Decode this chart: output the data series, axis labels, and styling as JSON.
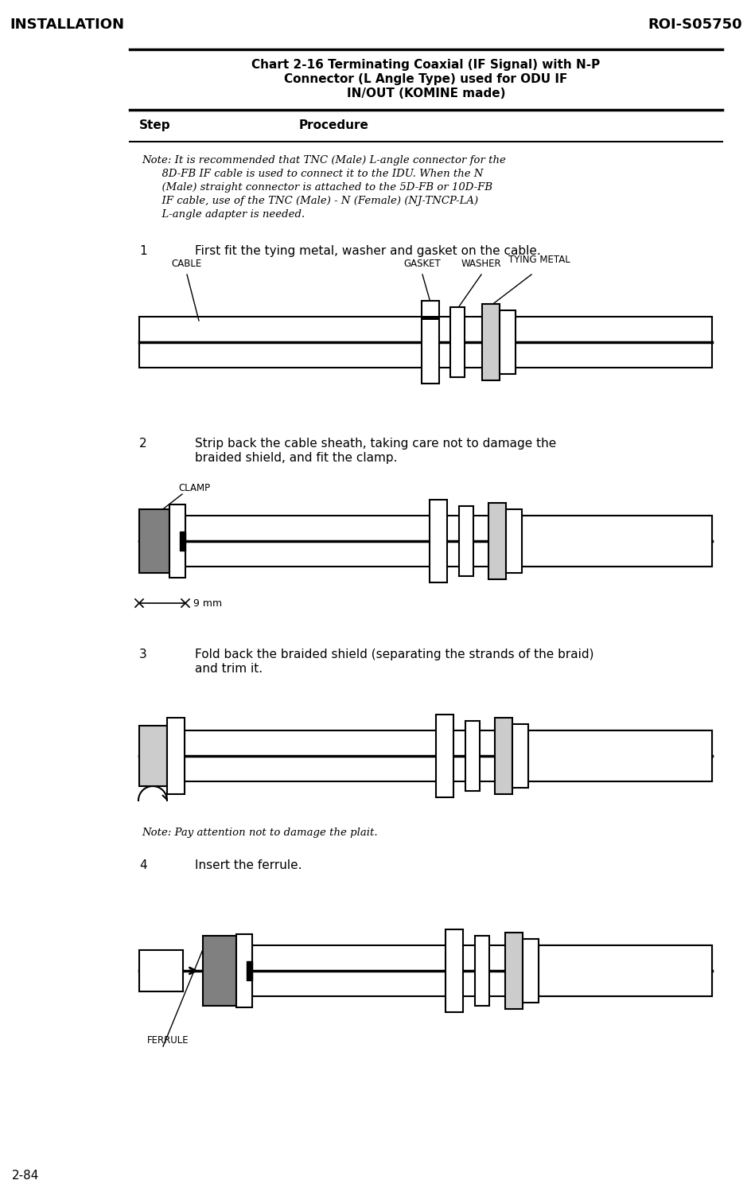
{
  "page_title_left": "INSTALLATION",
  "page_title_right": "ROI-S05750",
  "chart_title_line1": "Chart 2-16 Terminating Coaxial (IF Signal) with N-P",
  "chart_title_line2": "Connector (L Angle Type) used for ODU IF",
  "chart_title_line3": "IN/OUT (KOMINE made)",
  "step_label": "Step",
  "procedure_label": "Procedure",
  "note1_line1": "Note: It is recommended that TNC (Male) L-angle connector for the",
  "note1_line2": "      8D-FB IF cable is used to connect it to the IDU. When the N",
  "note1_line3": "      (Male) straight connector is attached to the 5D-FB or 10D-FB",
  "note1_line4": "      IF cable, use of the TNC (Male) - N (Female) (NJ-TNCP-LA)",
  "note1_line5": "      L-angle adapter is needed.",
  "step1_num": "1",
  "step1_text": "First fit the tying metal, washer and gasket on the cable.",
  "step2_num": "2",
  "step2_text_line1": "Strip back the cable sheath, taking care not to damage the",
  "step2_text_line2": "braided shield, and fit the clamp.",
  "step3_num": "3",
  "step3_text_line1": "Fold back the braided shield (separating the strands of the braid)",
  "step3_text_line2": "and trim it.",
  "note3": "Note: Pay attention not to damage the plait.",
  "step4_num": "4",
  "step4_text": "Insert the ferrule.",
  "label_cable": "CABLE",
  "label_gasket": "GASKET",
  "label_washer": "WASHER",
  "label_tying_metal": "TYING METAL",
  "label_clamp": "CLAMP",
  "label_9mm": "9 mm",
  "label_ferrule": "FERRULE",
  "page_footer": "2-84",
  "bg_color": "#ffffff",
  "line_color": "#000000",
  "mid_gray": "#999999",
  "light_gray": "#cccccc",
  "dark_gray": "#808080"
}
